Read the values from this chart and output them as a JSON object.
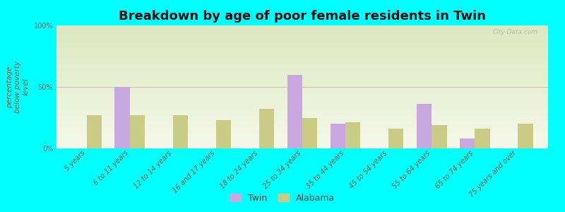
{
  "title": "Breakdown by age of poor female residents in Twin",
  "ylabel": "percentage\nbelow poverty\nlevel",
  "categories": [
    "5 years",
    "6 to 11 years",
    "12 to 14 years",
    "16 and 17 years",
    "18 to 24 years",
    "25 to 34 years",
    "35 to 44 years",
    "45 to 54 years",
    "55 to 64 years",
    "65 to 74 years",
    "75 years and over"
  ],
  "twin_values": [
    0,
    50,
    0,
    0,
    0,
    60,
    20,
    0,
    36,
    8,
    0
  ],
  "alabama_values": [
    27,
    27,
    27,
    23,
    32,
    25,
    21,
    16,
    19,
    16,
    20
  ],
  "twin_color": "#c9a8e0",
  "alabama_color": "#c8cc84",
  "background_color": "#00ffff",
  "grad_color_top": "#dce8c0",
  "grad_color_bottom": "#f5f8e8",
  "ylim": [
    0,
    100
  ],
  "yticks": [
    0,
    50,
    100
  ],
  "ytick_labels": [
    "0%",
    "50%",
    "100%"
  ],
  "bar_width": 0.35,
  "legend_twin": "Twin",
  "legend_alabama": "Alabama",
  "title_fontsize": 13,
  "label_fontsize": 7.5,
  "tick_fontsize": 7,
  "watermark": "City-Data.com"
}
